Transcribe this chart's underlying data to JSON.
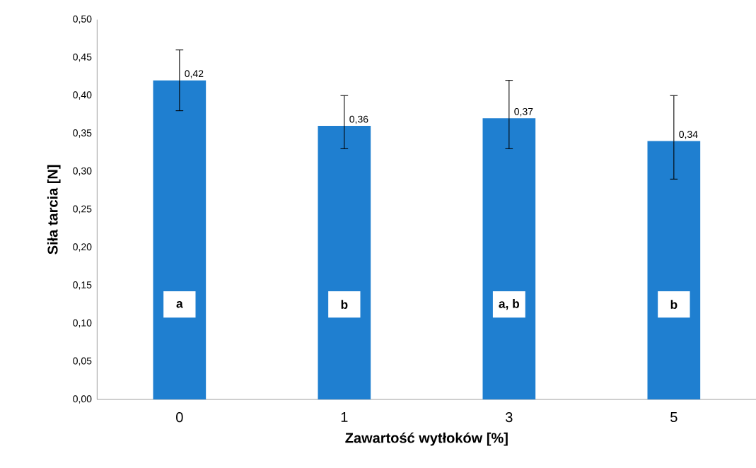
{
  "chart_data": {
    "type": "bar",
    "xlabel": "Zawartość wytłoków [%]",
    "ylabel": "Siła tarcia [N]",
    "categories": [
      "0",
      "1",
      "3",
      "5"
    ],
    "values": [
      0.42,
      0.36,
      0.37,
      0.34
    ],
    "value_labels": [
      "0,42",
      "0,36",
      "0,37",
      "0,34"
    ],
    "errors": [
      [
        0.38,
        0.46
      ],
      [
        0.33,
        0.4
      ],
      [
        0.33,
        0.42
      ],
      [
        0.29,
        0.4
      ]
    ],
    "color": "#1f7fd0",
    "ylim": [
      0,
      0.5
    ],
    "yticks": [
      {
        "value": 0,
        "label": "0,00"
      },
      {
        "value": 0.05,
        "label": "0,05"
      },
      {
        "value": 0.1,
        "label": "0,10"
      },
      {
        "value": 0.15,
        "label": "0,15"
      },
      {
        "value": 0.2,
        "label": "0,20"
      },
      {
        "value": 0.25,
        "label": "0,25"
      },
      {
        "value": 0.3,
        "label": "0,30"
      },
      {
        "value": 0.35,
        "label": "0,35"
      },
      {
        "value": 0.4,
        "label": "0,40"
      },
      {
        "value": 0.45,
        "label": "0,45"
      },
      {
        "value": 0.5,
        "label": "0,50"
      }
    ],
    "annotations": [
      "a",
      "b",
      "a, b",
      "b"
    ]
  }
}
